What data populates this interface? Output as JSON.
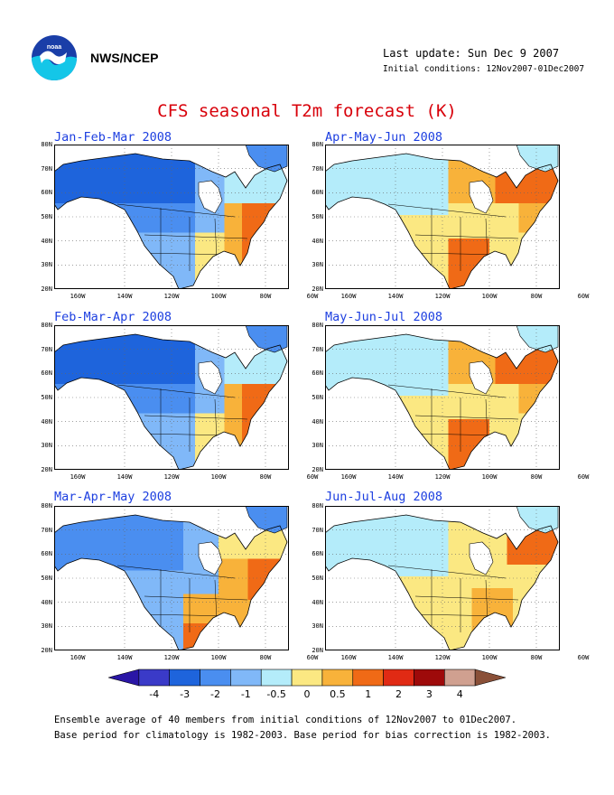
{
  "header": {
    "agency": "NWS/NCEP",
    "last_update": "Last update: Sun Dec 9 2007",
    "initial_conditions": "Initial conditions: 12Nov2007-01Dec2007"
  },
  "title": "CFS seasonal T2m forecast (K)",
  "panels": [
    {
      "title": "Jan-Feb-Mar 2008",
      "warm_center": "east"
    },
    {
      "title": "Apr-May-Jun 2008",
      "warm_center": "southwest-northeast"
    },
    {
      "title": "Feb-Mar-Apr 2008",
      "warm_center": "east"
    },
    {
      "title": "May-Jun-Jul 2008",
      "warm_center": "southwest-northeast"
    },
    {
      "title": "Mar-Apr-May 2008",
      "warm_center": "southeast"
    },
    {
      "title": "Jun-Jul-Aug 2008",
      "warm_center": "central-northeast"
    }
  ],
  "axes": {
    "lat_labels": [
      "80N",
      "70N",
      "60N",
      "50N",
      "40N",
      "30N",
      "20N"
    ],
    "lon_labels": [
      "160W",
      "140W",
      "120W",
      "100W",
      "80W",
      "60W"
    ]
  },
  "legend": {
    "labels": [
      "-4",
      "-3",
      "-2",
      "-1",
      "-0.5",
      "0",
      "0.5",
      "1",
      "2",
      "3",
      "4"
    ],
    "colors": [
      "#2a16a6",
      "#3a3ac8",
      "#1e64dc",
      "#4a8ef0",
      "#80b8f8",
      "#b4ecfa",
      "#fbe882",
      "#f8b23a",
      "#f06a16",
      "#e02a14",
      "#9e0a0a",
      "#d0a090",
      "#8a5038"
    ]
  },
  "footnotes": [
    "Ensemble average of 40 members from initial conditions of 12Nov2007 to 01Dec2007.",
    "Base period for climatology is 1982-2003. Base period for bias correction is 1982-2003."
  ],
  "colors": {
    "title": "#d8000a",
    "panel_title": "#1d3fe0"
  }
}
